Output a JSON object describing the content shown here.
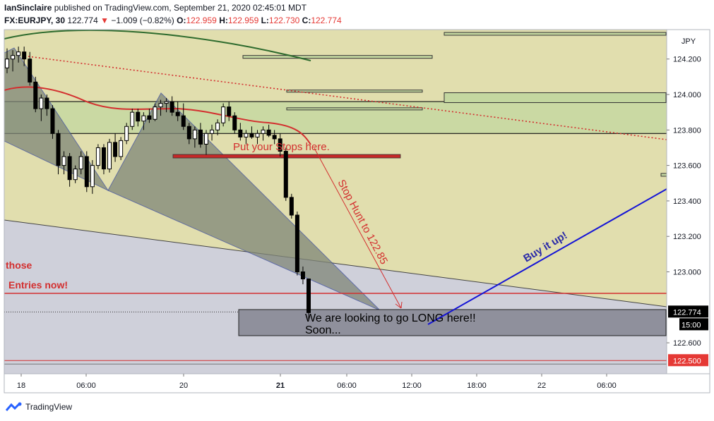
{
  "header": {
    "author": "IanSinclaire",
    "published_text": "published on TradingView.com, September 21, 2020 02:45:01 MDT",
    "symbol": "FX:EURJPY, 30",
    "last": "122.774",
    "change_arrow": "▼",
    "change": "−1.009 (−0.82%)",
    "o_label": "O:",
    "o_value": "122.959",
    "h_label": "H:",
    "h_value": "122.959",
    "l_label": "L:",
    "l_value": "122.730",
    "c_label": "C:",
    "c_value": "122.774"
  },
  "footer": {
    "brand": "TradingView"
  },
  "colors": {
    "upper_bg": "#e1deae",
    "lower_bg": "#cfd0da",
    "zone": "#c4d7a0",
    "triangle": "#7f8678",
    "red": "#d32f2f",
    "blue": "#1414d6",
    "green_ma": "#2e6b2e",
    "price_label_bg": "#000000",
    "target_label_bg": "#e53935"
  },
  "chart_data": {
    "type": "candlestick",
    "currency": "JPY",
    "ylim": [
      122.39,
      124.5
    ],
    "y_ticks": [
      "124.200",
      "124.000",
      "123.800",
      "123.600",
      "123.400",
      "123.200",
      "123.000",
      "122.600"
    ],
    "x_ticks": [
      "18",
      "06:00",
      "20",
      "12:00",
      "21",
      "06:00",
      "12:00",
      "18:00",
      "22",
      "06:00"
    ],
    "last_price_label": "122.774",
    "countdown_label": "15:00",
    "target_label": "122.500",
    "candles": [
      [
        124.15,
        124.26,
        124.12,
        124.2
      ],
      [
        124.2,
        124.25,
        124.13,
        124.22
      ],
      [
        124.22,
        124.27,
        124.18,
        124.24
      ],
      [
        124.24,
        124.27,
        124.16,
        124.2
      ],
      [
        124.2,
        124.24,
        124.05,
        124.07
      ],
      [
        124.07,
        124.1,
        123.9,
        123.92
      ],
      [
        123.92,
        124.0,
        123.85,
        123.98
      ],
      [
        123.98,
        124.0,
        123.88,
        123.92
      ],
      [
        123.92,
        123.94,
        123.75,
        123.78
      ],
      [
        123.78,
        123.8,
        123.55,
        123.6
      ],
      [
        123.6,
        123.68,
        123.55,
        123.65
      ],
      [
        123.65,
        123.67,
        123.48,
        123.52
      ],
      [
        123.52,
        123.6,
        123.5,
        123.58
      ],
      [
        123.58,
        123.68,
        123.55,
        123.65
      ],
      [
        123.65,
        123.68,
        123.45,
        123.48
      ],
      [
        123.48,
        123.63,
        123.44,
        123.6
      ],
      [
        123.6,
        123.72,
        123.58,
        123.7
      ],
      [
        123.7,
        123.72,
        123.55,
        123.58
      ],
      [
        123.58,
        123.75,
        123.56,
        123.73
      ],
      [
        123.73,
        123.78,
        123.62,
        123.65
      ],
      [
        123.65,
        123.76,
        123.63,
        123.74
      ],
      [
        123.74,
        123.84,
        123.72,
        123.82
      ],
      [
        123.82,
        123.92,
        123.8,
        123.9
      ],
      [
        123.9,
        123.92,
        123.82,
        123.85
      ],
      [
        123.85,
        123.9,
        123.8,
        123.88
      ],
      [
        123.88,
        123.92,
        123.84,
        123.86
      ],
      [
        123.86,
        123.95,
        123.85,
        123.93
      ],
      [
        123.93,
        123.97,
        123.88,
        123.95
      ],
      [
        123.95,
        123.98,
        123.9,
        123.96
      ],
      [
        123.96,
        123.99,
        123.88,
        123.9
      ],
      [
        123.9,
        123.96,
        123.85,
        123.88
      ],
      [
        123.88,
        123.95,
        123.8,
        123.82
      ],
      [
        123.82,
        123.84,
        123.72,
        123.75
      ],
      [
        123.75,
        123.82,
        123.7,
        123.8
      ],
      [
        123.8,
        123.84,
        123.7,
        123.72
      ],
      [
        123.72,
        123.8,
        123.66,
        123.78
      ],
      [
        123.78,
        123.83,
        123.74,
        123.8
      ],
      [
        123.8,
        123.86,
        123.77,
        123.84
      ],
      [
        123.84,
        123.95,
        123.82,
        123.93
      ],
      [
        123.93,
        123.96,
        123.85,
        123.88
      ],
      [
        123.88,
        123.9,
        123.78,
        123.8
      ],
      [
        123.8,
        123.84,
        123.74,
        123.76
      ],
      [
        123.76,
        123.8,
        123.72,
        123.78
      ],
      [
        123.78,
        123.82,
        123.75,
        123.76
      ],
      [
        123.76,
        123.8,
        123.72,
        123.78
      ],
      [
        123.78,
        123.82,
        123.74,
        123.8
      ],
      [
        123.8,
        123.83,
        123.76,
        123.77
      ],
      [
        123.77,
        123.8,
        123.72,
        123.75
      ],
      [
        123.75,
        123.78,
        123.65,
        123.68
      ],
      [
        123.68,
        123.7,
        123.4,
        123.42
      ],
      [
        123.42,
        123.44,
        123.3,
        123.32
      ],
      [
        123.32,
        123.34,
        122.98,
        123.0
      ],
      [
        123.0,
        123.03,
        122.93,
        122.96
      ],
      [
        122.96,
        122.96,
        122.73,
        122.77
      ]
    ],
    "annotations": {
      "stops": "Put your Stops here.",
      "stop_hunt": "Stop Hunt to 122.85",
      "buy": "Buy it up!",
      "long_line1": "We are looking to go LONG here!!",
      "long_line2": "Soon...",
      "those": "those",
      "entries": "Entries now!"
    }
  }
}
